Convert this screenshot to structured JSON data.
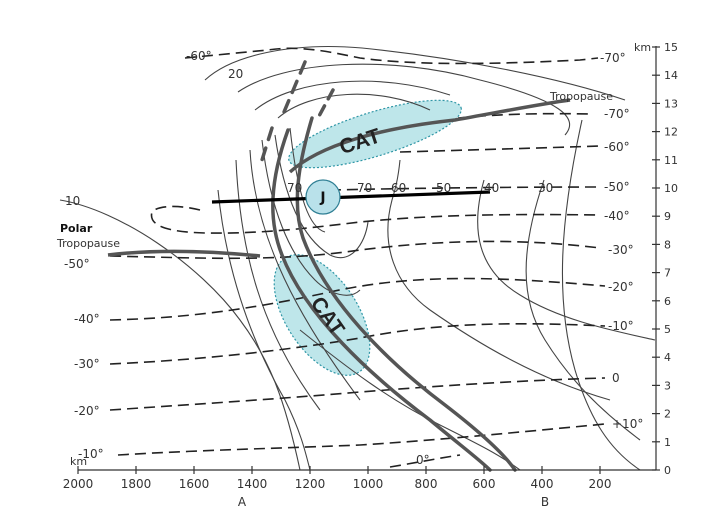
{
  "labels": {
    "km_top": "km",
    "km_bottom": "km",
    "tropopause": "Tropopause",
    "polar": "Polar",
    "polar_tropopause": "Tropopause",
    "cat_upper": "CAT",
    "cat_lower": "CAT",
    "jet": "J",
    "point_a": "A",
    "point_b": "B"
  },
  "x_ticks": [
    "2000",
    "1800",
    "1600",
    "1400",
    "1200",
    "1000",
    "800",
    "600",
    "400",
    "200"
  ],
  "y_ticks": [
    "0",
    "1",
    "2",
    "3",
    "4",
    "5",
    "6",
    "7",
    "8",
    "9",
    "10",
    "11",
    "12",
    "13",
    "14",
    "15"
  ],
  "isotach_labels": [
    "20",
    "10",
    "70",
    "70",
    "60",
    "50",
    "40",
    "30"
  ],
  "temp_labels_left": [
    "-60°",
    "-50°",
    "-40°",
    "-30°",
    "-20°",
    "-10°",
    "0°"
  ],
  "temp_labels_right": [
    "-70°",
    "-70°",
    "-60°",
    "-50°",
    "-40°",
    "-30°",
    "-20°",
    "-10°",
    "0",
    "+10°"
  ],
  "colors": {
    "cat_fill": "#a8dde3",
    "cat_stroke": "#2f96a6",
    "jet_fill": "#b9e1ea",
    "line": "#333333"
  }
}
